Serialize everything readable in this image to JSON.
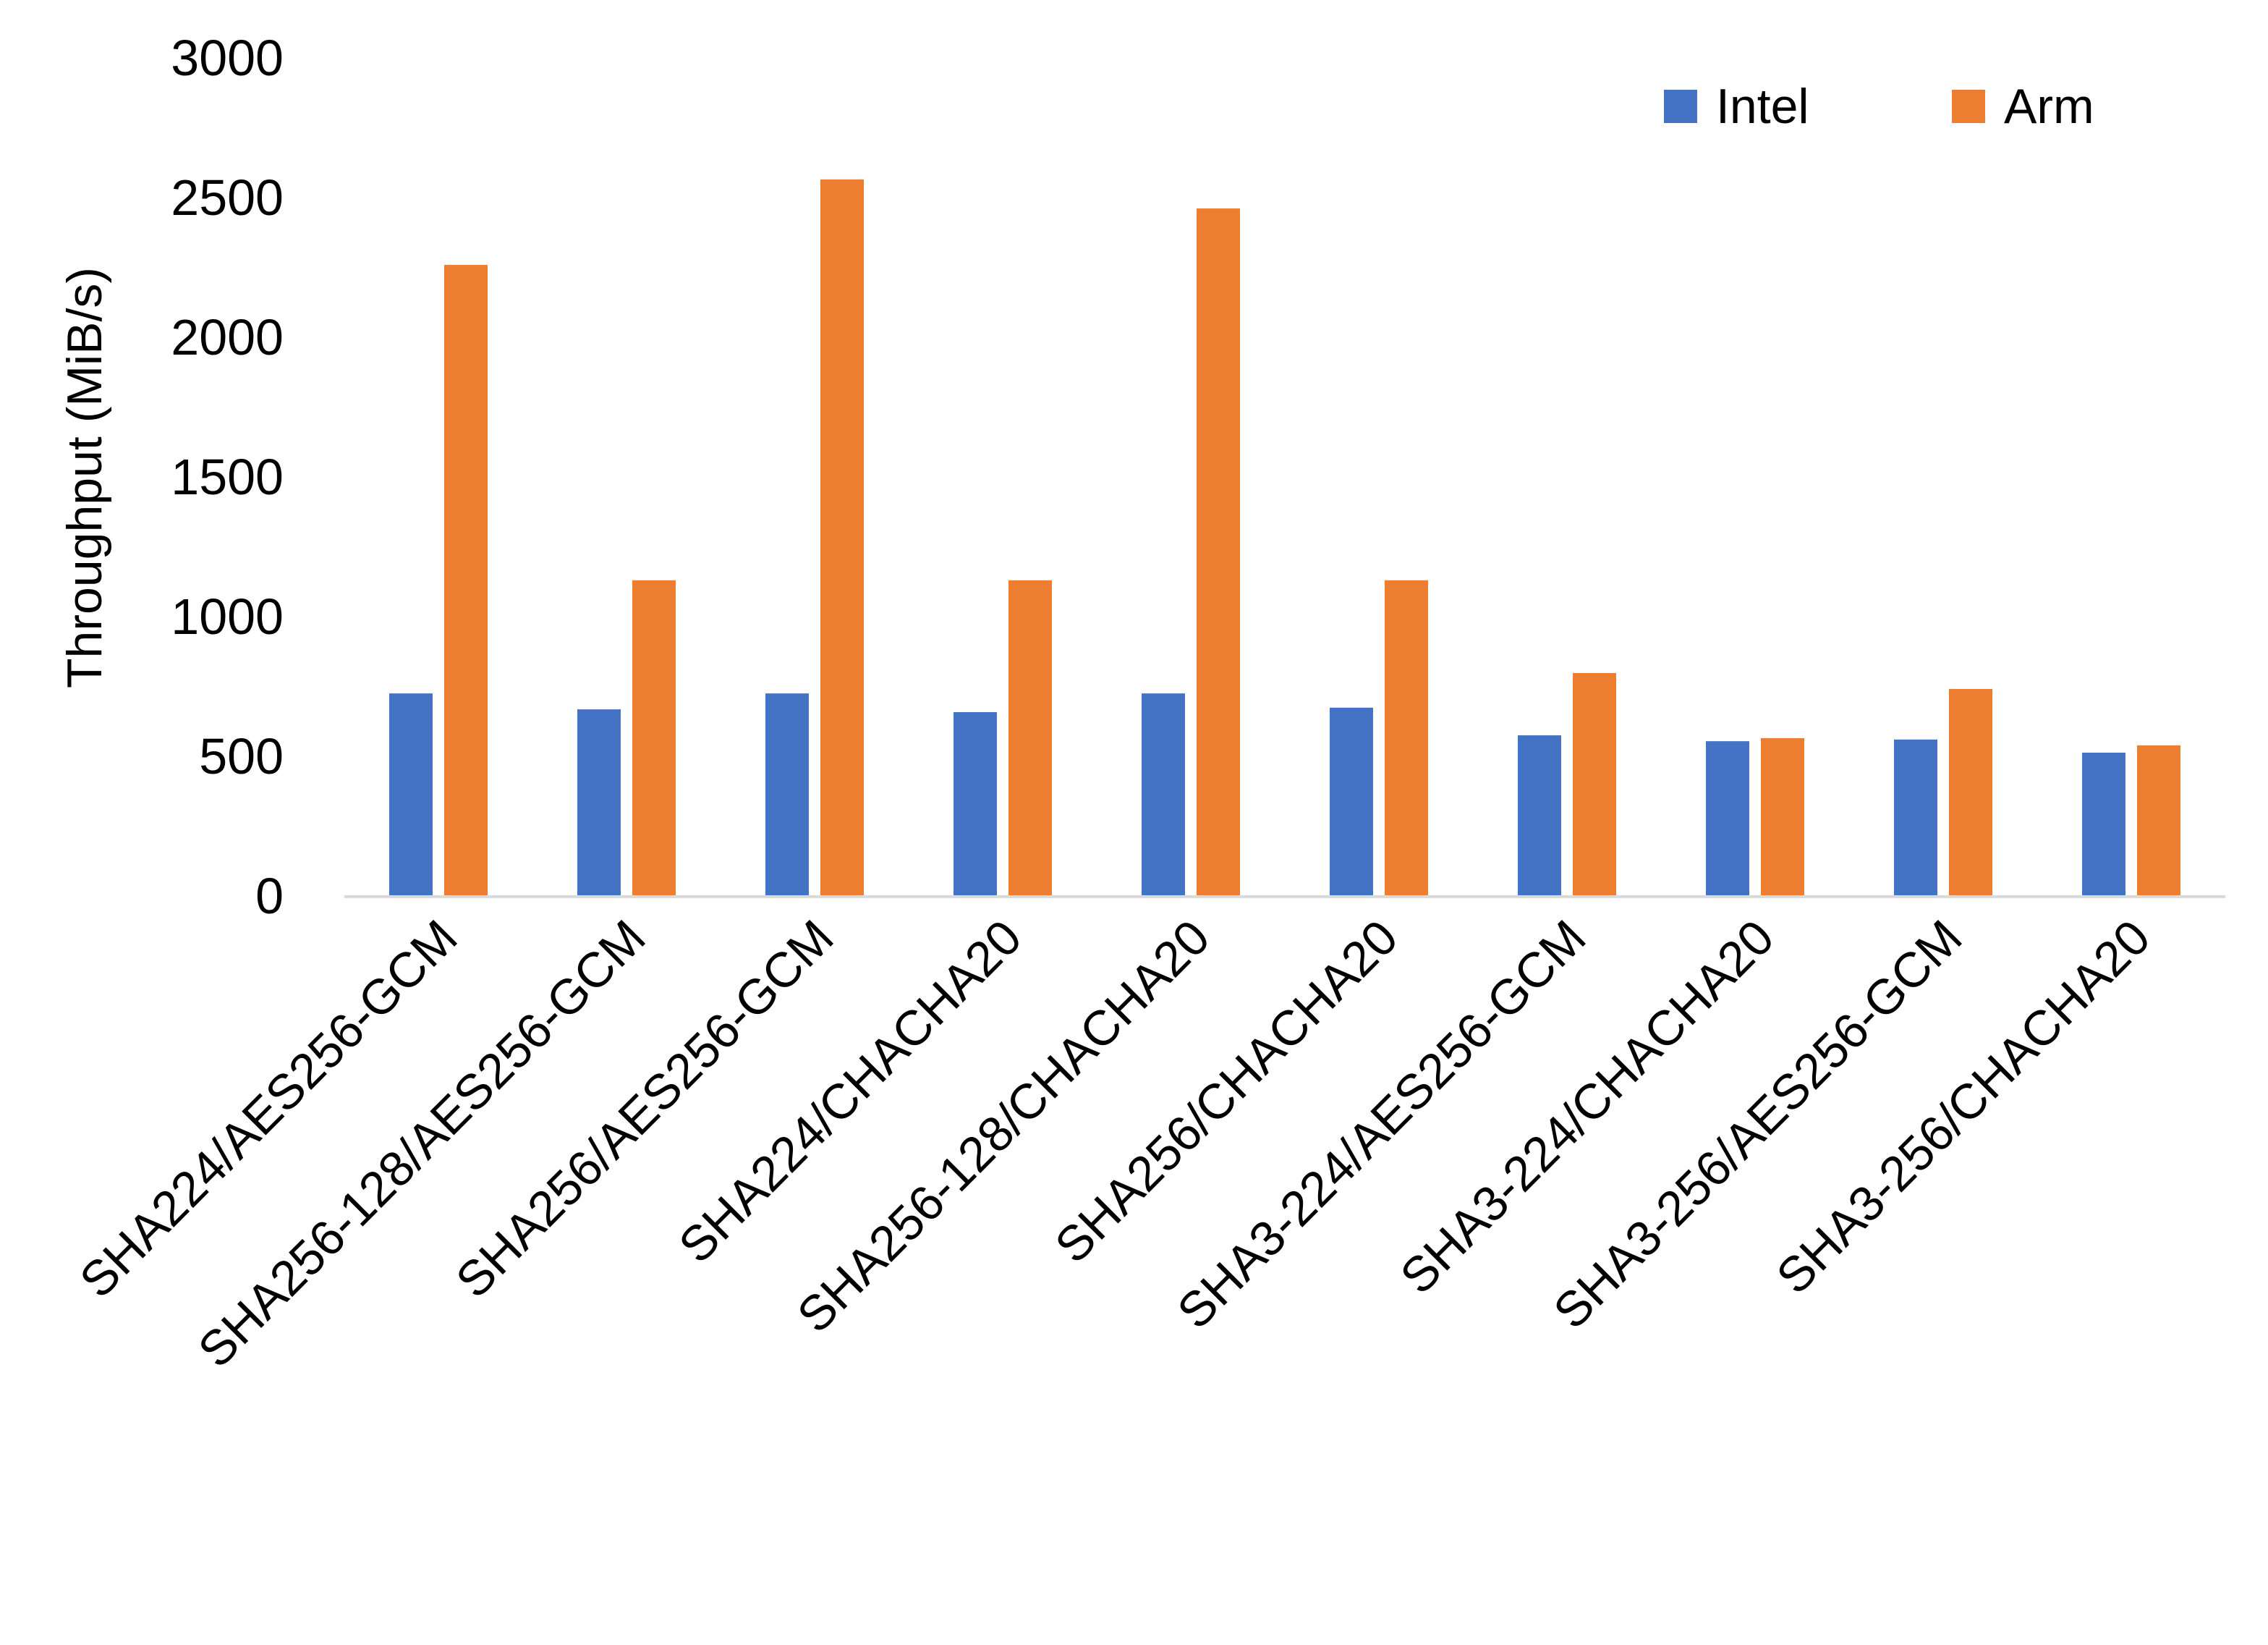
{
  "chart_data": {
    "type": "bar",
    "title": "",
    "xlabel": "",
    "ylabel": "Throughput (MiB/s)",
    "ylim": [
      0,
      3000
    ],
    "yticks": [
      0,
      500,
      1000,
      1500,
      2000,
      2500,
      3000
    ],
    "grid": false,
    "legend_position": "top-right",
    "categories": [
      "SHA224/AES256-GCM",
      "SHA256-128/AES256-GCM",
      "SHA256/AES256-GCM",
      "SHA224/CHACHA20",
      "SHA256-128/CHACHA20",
      "SHA256/CHACHA20",
      "SHA3-224/AES256-GCM",
      "SHA3-224/CHACHA20",
      "SHA3-256/AES256-GCM",
      "SHA3-256/CHACHA20"
    ],
    "series": [
      {
        "name": "Intel",
        "color": "#4472C4",
        "values": [
          725,
          668,
          725,
          658,
          725,
          674,
          575,
          554,
          560,
          513
        ]
      },
      {
        "name": "Arm",
        "color": "#ED7D31",
        "values": [
          2259,
          1130,
          2565,
          1130,
          2461,
          1130,
          798,
          565,
          741,
          539
        ]
      }
    ]
  }
}
